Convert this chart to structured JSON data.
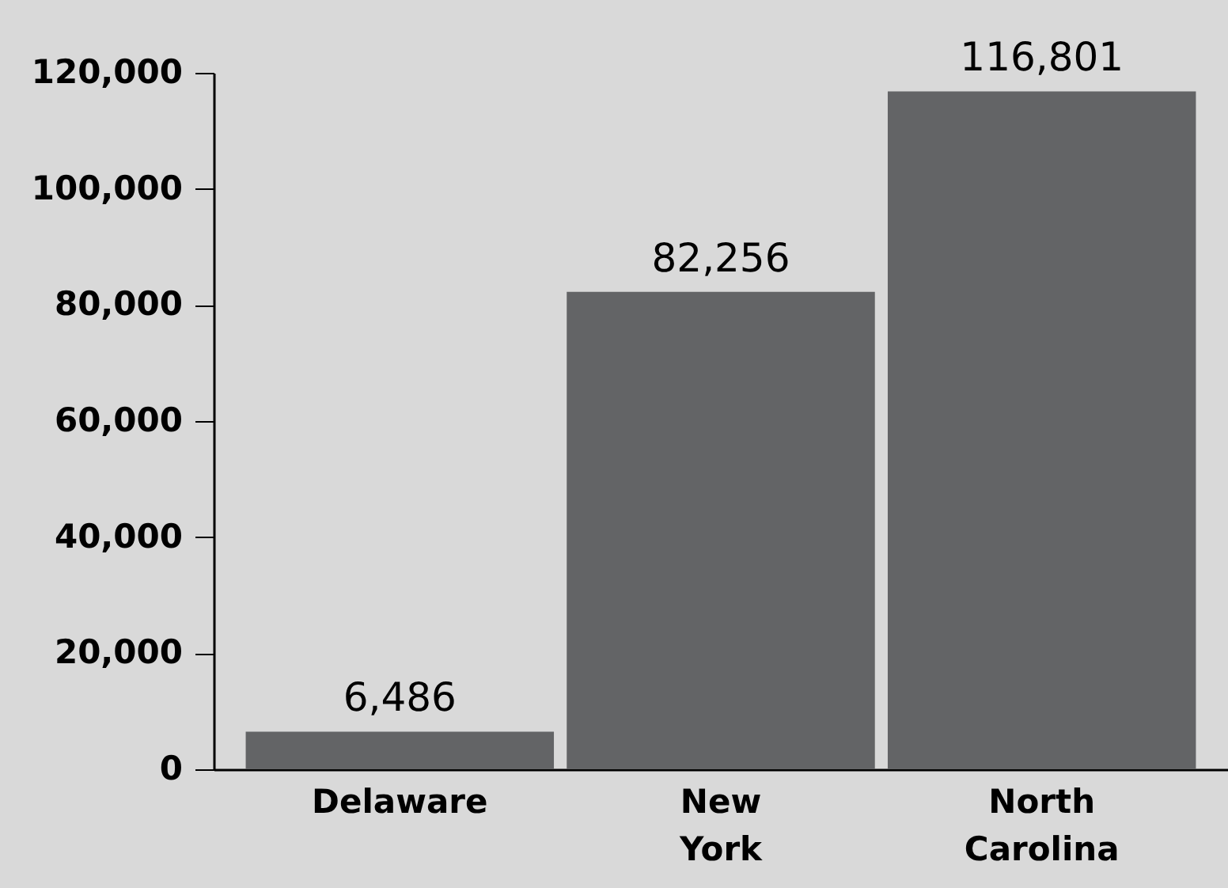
{
  "chart_data": {
    "type": "bar",
    "categories": [
      "Delaware",
      "New York",
      "North Carolina"
    ],
    "values": [
      6486,
      82256,
      116801
    ],
    "value_labels": [
      "6,486",
      "82,256",
      "116,801"
    ],
    "color": "#636466",
    "ylim": [
      0,
      120000
    ],
    "yticks": [
      0,
      {
        "value": 20000,
        "label": "20,000"
      },
      {
        "value": 40000,
        "label": "40,000"
      },
      {
        "value": 60000,
        "label": "60,000"
      },
      {
        "value": 80000,
        "label": "80,000"
      },
      {
        "value": 100000,
        "label": "100,000"
      },
      {
        "value": 120000,
        "label": "120,000"
      }
    ]
  }
}
